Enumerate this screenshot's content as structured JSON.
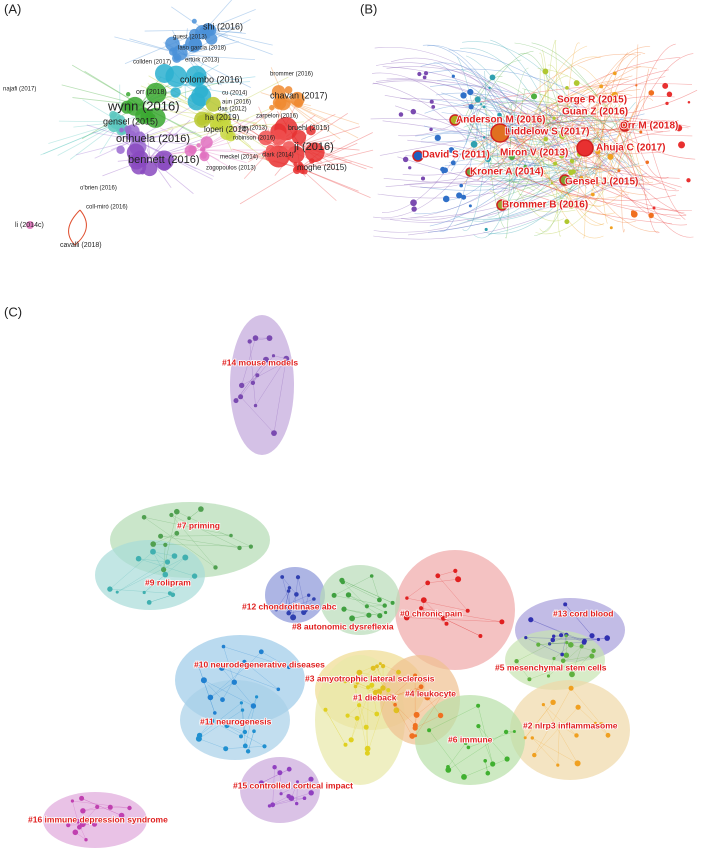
{
  "panel_a": {
    "label": "(A)",
    "nodes": [
      "shi (2016)",
      "guest (2013)",
      "laso garcia (2018)",
      "ertürk (2013)",
      "collden (2017)",
      "najafi (2017)",
      "colombo (2016)",
      "brommer (2016)",
      "orr (2018)",
      "cu (2014)",
      "chavan (2017)",
      "wynn (2016)",
      "aun (2016)",
      "das (2012)",
      "ha (2019)",
      "zarpelon (2016)",
      "lee (2013)",
      "gensel (2015)",
      "loperi (2014)",
      "bruehl (2015)",
      "orihuela (2016)",
      "robinson (2016)",
      "ji (2016)",
      "meckel (2014)",
      "clark (2014)",
      "bennett (2016)",
      "zogopoulos (2013)",
      "moghe (2015)",
      "o'brien (2016)",
      "coll-miró (2016)",
      "li (2014c)",
      "cavalli (2018)"
    ]
  },
  "panel_b": {
    "label": "(B)",
    "nodes": [
      "Sorge R (2015)",
      "Guan Z (2016)",
      "Anderson M (2016)",
      "Orr M (2018)",
      "Liddelow S (2017)",
      "Ahuja C (2017)",
      "David S (2011)",
      "Miron V (2013)",
      "Kroner A (2014)",
      "Gensel J (2015)",
      "Brommer B (2016)"
    ]
  },
  "panel_c": {
    "label": "(C)",
    "clusters": [
      "#14 mouse models",
      "#7 priming",
      "#9 rolipram",
      "#12 chondroitinase abc",
      "#0 chronic pain",
      "#13 cord blood",
      "#8 autonomic dysreflexia",
      "#10 neurodegenerative diseases",
      "#5 mesenchymal stem cells",
      "#3 amyotrophic lateral sclerosis",
      "#1 dieback",
      "#4 leukocyte",
      "#11 neurogenesis",
      "#2 nlrp3 inflammasome",
      "#6 immune",
      "#15 controlled cortical impact",
      "#16 immune depression syndrome"
    ]
  }
}
